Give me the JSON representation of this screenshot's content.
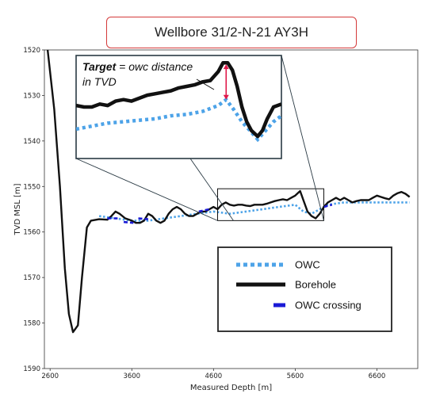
{
  "title": "Wellbore 31/2-N-21 AY3H",
  "colors": {
    "owc": "#4da3e8",
    "borehole": "#111111",
    "crossing": "#1a1ad6",
    "title_border": "#d43a3a",
    "target_arrow": "#e0184a"
  },
  "chart_data": {
    "type": "line",
    "title": "Wellbore 31/2-N-21 AY3H",
    "xlabel": "Measured Depth [m]",
    "ylabel": "TVD MSL [m]",
    "xlim": [
      2530,
      7100
    ],
    "ylim": [
      1590,
      1520
    ],
    "y_inverted": true,
    "x_ticks": [
      2600,
      3600,
      4600,
      5600,
      6600
    ],
    "y_ticks": [
      1520,
      1530,
      1540,
      1550,
      1560,
      1570,
      1580,
      1590
    ],
    "grid": false,
    "legend_position": "bottom-right",
    "series": [
      {
        "name": "OWC",
        "style": "dotted",
        "x": [
          3200,
          3400,
          3600,
          3800,
          4000,
          4200,
          4400,
          4600,
          4800,
          5000,
          5200,
          5400,
          5600,
          5700,
          5800,
          5900,
          6000,
          6200,
          6400,
          6600,
          6800,
          7000
        ],
        "y": [
          1556.5,
          1557.0,
          1557.5,
          1557.5,
          1557.0,
          1556.5,
          1556.0,
          1555.5,
          1556.0,
          1555.5,
          1555.0,
          1554.5,
          1554.0,
          1555.5,
          1556.0,
          1555.0,
          1554.0,
          1553.5,
          1553.5,
          1553.5,
          1553.5,
          1553.5
        ]
      },
      {
        "name": "Borehole",
        "style": "solid",
        "x": [
          2570,
          2650,
          2720,
          2780,
          2830,
          2880,
          2940,
          2990,
          3050,
          3100,
          3200,
          3300,
          3350,
          3400,
          3450,
          3520,
          3600,
          3650,
          3700,
          3750,
          3800,
          3850,
          3900,
          3950,
          4000,
          4050,
          4100,
          4150,
          4200,
          4250,
          4300,
          4350,
          4400,
          4450,
          4500,
          4550,
          4600,
          4650,
          4700,
          4750,
          4800,
          4850,
          4900,
          4950,
          5000,
          5050,
          5100,
          5150,
          5200,
          5250,
          5300,
          5350,
          5400,
          5450,
          5500,
          5550,
          5600,
          5630,
          5660,
          5700,
          5750,
          5800,
          5850,
          5900,
          5950,
          6000,
          6050,
          6100,
          6150,
          6200,
          6250,
          6300,
          6350,
          6400,
          6450,
          6500,
          6550,
          6600,
          6650,
          6700,
          6750,
          6800,
          6850,
          6900,
          6950,
          7000
        ],
        "y": [
          1520,
          1533,
          1550,
          1568,
          1578,
          1582,
          1580.5,
          1570,
          1559,
          1557.5,
          1557.2,
          1557.3,
          1556.5,
          1555.5,
          1556.0,
          1557.0,
          1557.5,
          1558.0,
          1558.0,
          1557.5,
          1556.0,
          1556.5,
          1557.5,
          1558.0,
          1557.5,
          1556.0,
          1555.0,
          1554.5,
          1555.0,
          1556.0,
          1556.5,
          1556.5,
          1556.0,
          1555.5,
          1555.5,
          1555.0,
          1554.5,
          1555.0,
          1554.0,
          1553.5,
          1554.0,
          1554.2,
          1554.0,
          1554.0,
          1554.2,
          1554.3,
          1554.0,
          1554.0,
          1554.0,
          1553.8,
          1553.5,
          1553.2,
          1553.0,
          1552.8,
          1553.0,
          1552.5,
          1552.0,
          1551.5,
          1551.0,
          1553.0,
          1555.5,
          1556.5,
          1557.0,
          1556.0,
          1554.5,
          1553.5,
          1553.0,
          1552.5,
          1553.0,
          1552.5,
          1553.0,
          1553.5,
          1553.2,
          1553.0,
          1553.0,
          1553.0,
          1552.5,
          1552.0,
          1552.3,
          1552.6,
          1552.8,
          1552.0,
          1551.5,
          1551.2,
          1551.6,
          1552.3
        ]
      },
      {
        "name": "OWC crossing",
        "style": "dashed",
        "segments": [
          {
            "x": [
              3300,
              3450
            ],
            "y": [
              1557.0,
              1557.0
            ]
          },
          {
            "x": [
              3500,
              3620
            ],
            "y": [
              1557.8,
              1558.0
            ]
          },
          {
            "x": [
              3680,
              3800
            ],
            "y": [
              1557.0,
              1557.2
            ]
          },
          {
            "x": [
              4420,
              4550
            ],
            "y": [
              1555.5,
              1555.0
            ]
          },
          {
            "x": [
              5950,
              6050
            ],
            "y": [
              1554.5,
              1554.0
            ]
          }
        ]
      }
    ],
    "inset": {
      "xlim": [
        4650,
        5950
      ],
      "ylim": [
        1557.5,
        1550.5
      ],
      "annotation_title": "Target",
      "annotation_rest": " = owc distance",
      "annotation_line2": "in TVD"
    },
    "legend": [
      "OWC",
      "Borehole",
      "OWC crossing"
    ]
  }
}
